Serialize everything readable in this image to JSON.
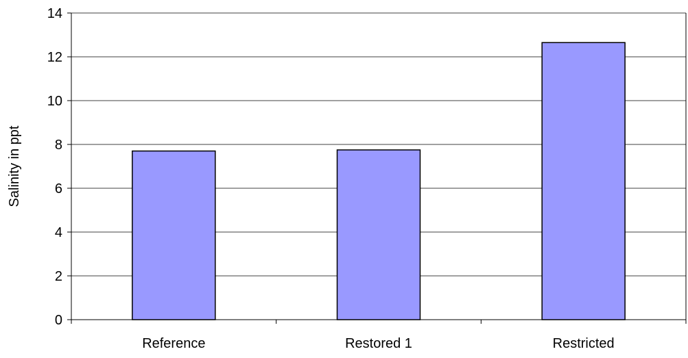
{
  "chart_data": {
    "type": "bar",
    "title": "",
    "xlabel": "",
    "ylabel": "Salinity in ppt",
    "categories": [
      "Reference",
      "Restored 1",
      "Restricted"
    ],
    "values": [
      7.7,
      7.75,
      12.65
    ],
    "ylim": [
      0,
      14
    ],
    "yticks": [
      0,
      2,
      4,
      6,
      8,
      10,
      12,
      14
    ],
    "ytick_labels": [
      "0",
      "2",
      "4",
      "6",
      "8",
      "10",
      "12",
      "14"
    ],
    "grid": true,
    "legend": "none",
    "bar_color": "#9999ff",
    "bar_edge_color": "#000000"
  }
}
